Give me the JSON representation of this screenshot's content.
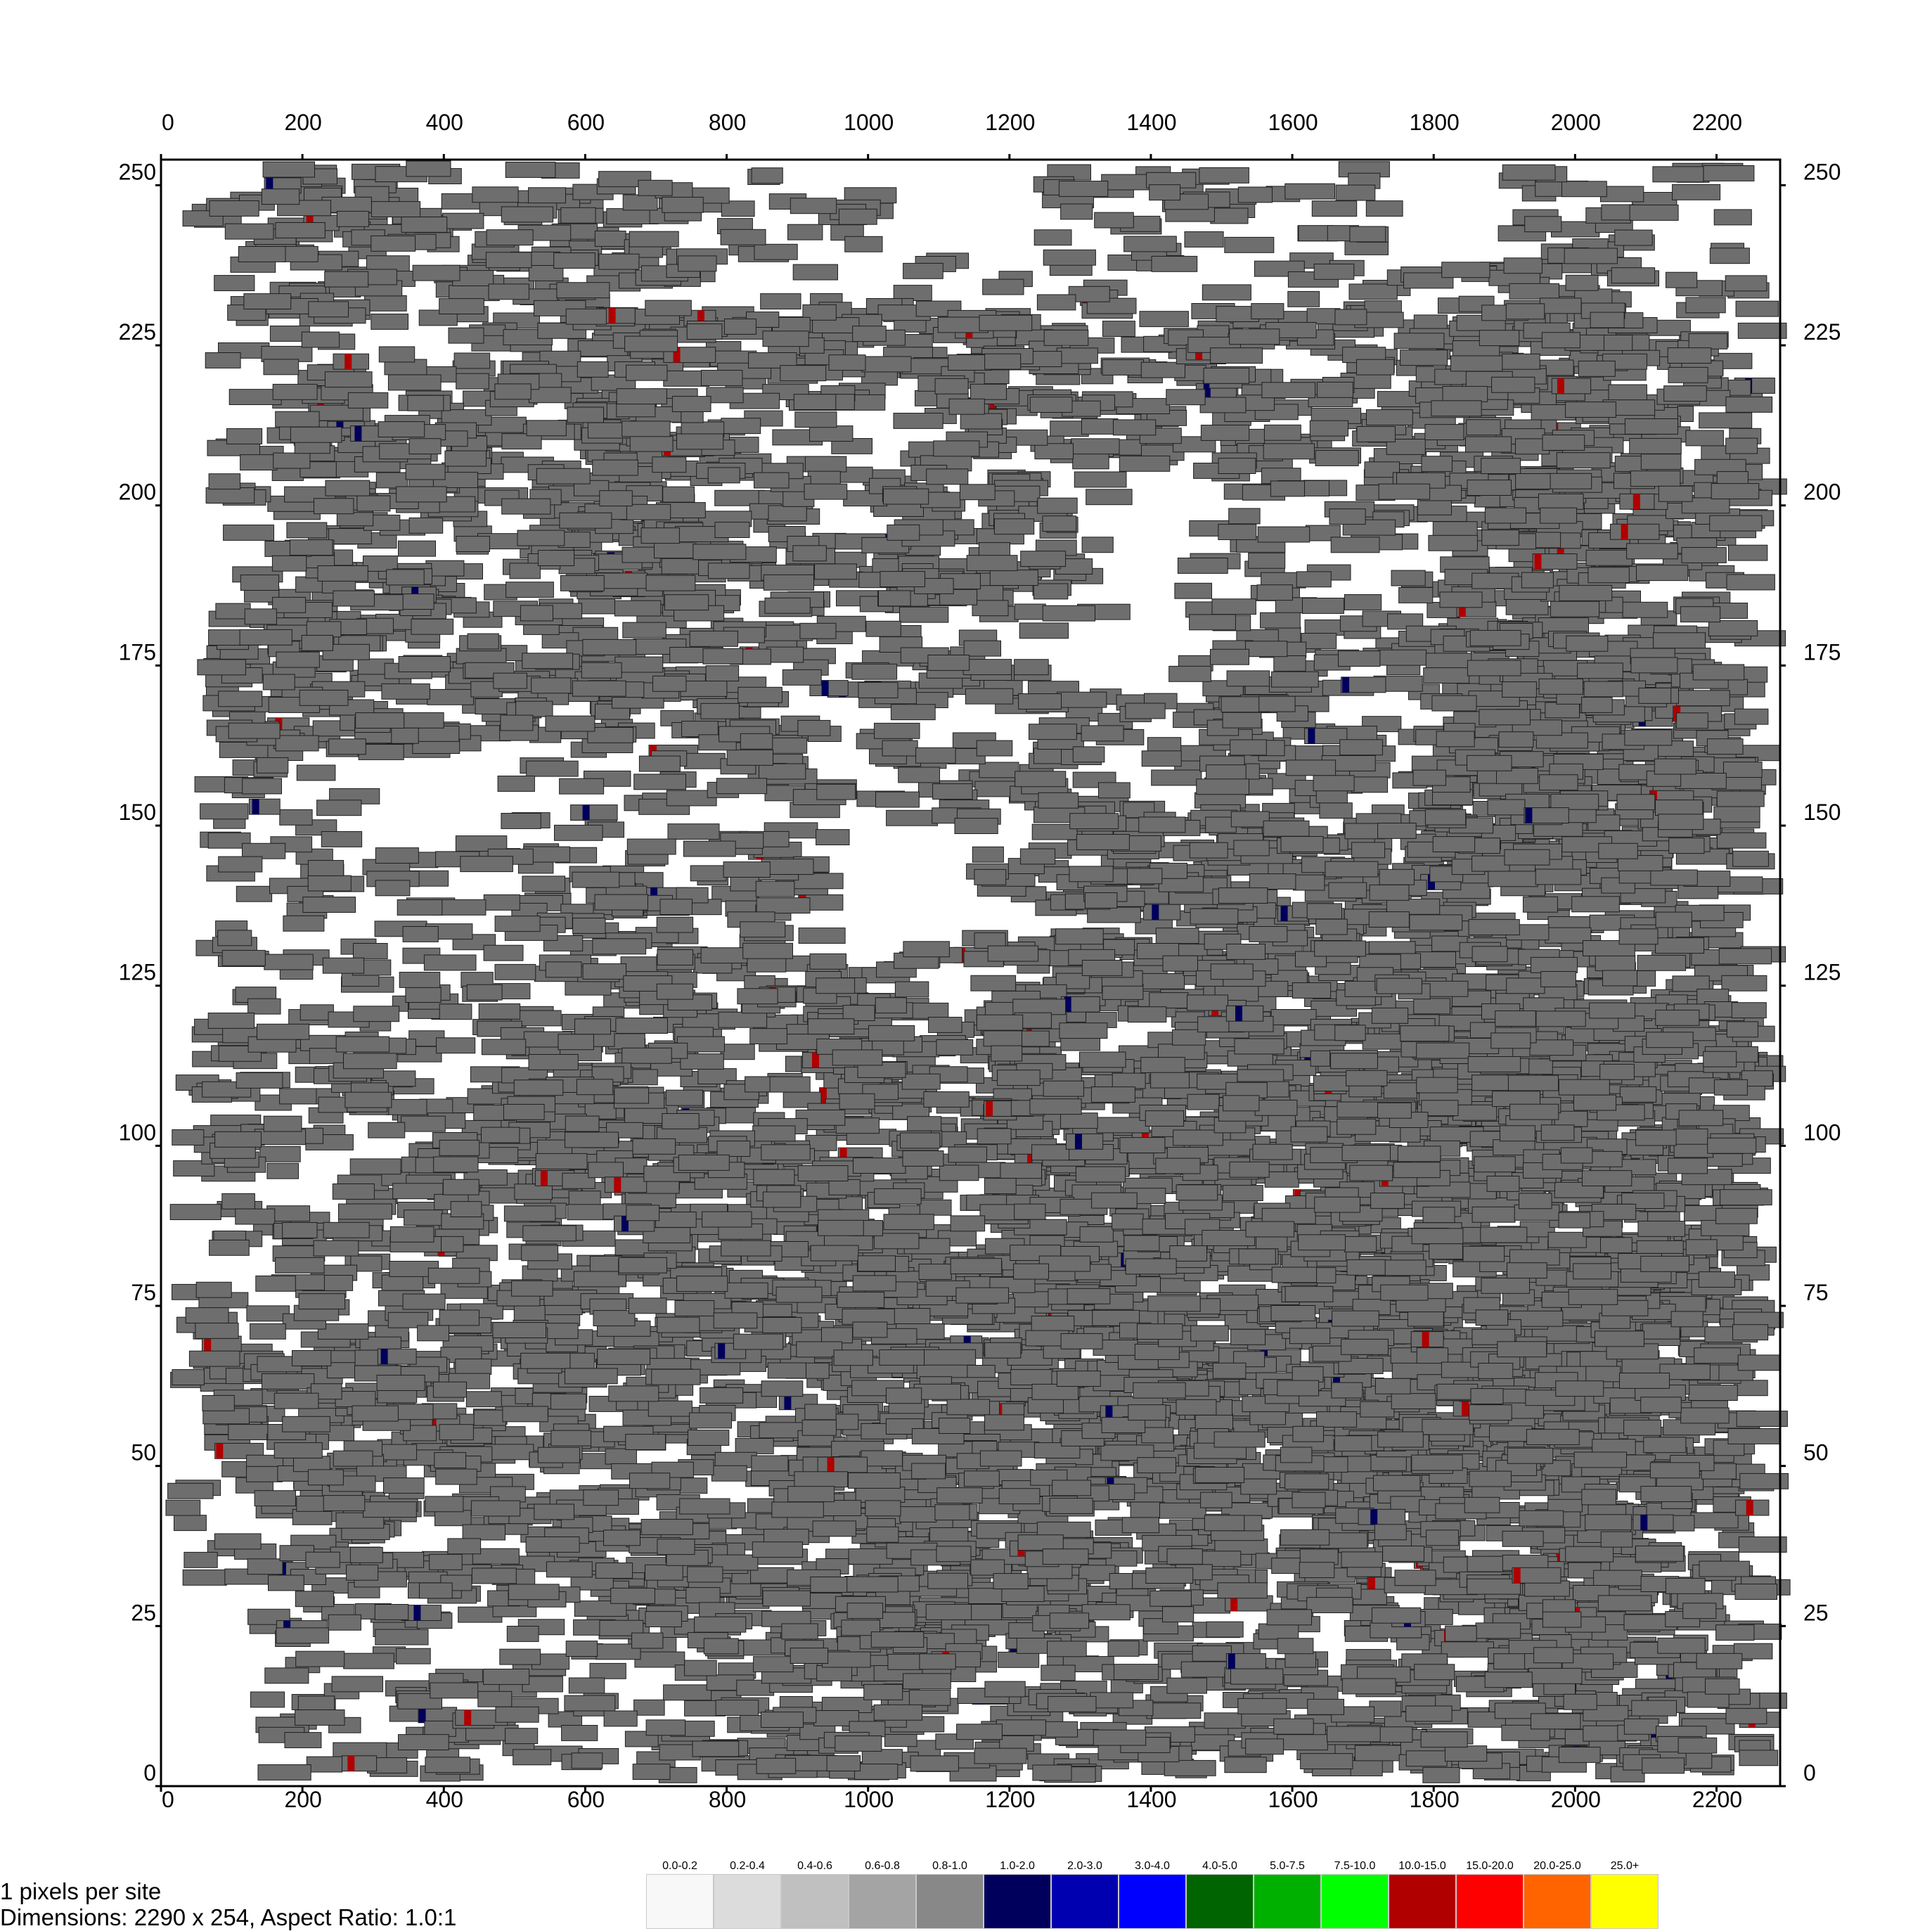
{
  "chart_data": {
    "type": "placement-map",
    "x_ticks": [
      "0",
      "200",
      "400",
      "600",
      "800",
      "1000",
      "1200",
      "1400",
      "1600",
      "1800",
      "2000",
      "2200"
    ],
    "y_ticks": [
      "0",
      "25",
      "50",
      "75",
      "100",
      "125",
      "150",
      "175",
      "200",
      "225",
      "250"
    ],
    "x_range": [
      0,
      2290
    ],
    "y_range": [
      0,
      254
    ],
    "cell_fill": "#6e6e6e",
    "cell_stroke": "#1e1e1e",
    "grid": false
  },
  "footer": {
    "line1": "1 pixels per site",
    "line2": "Dimensions: 2290 x 254, Aspect Ratio: 1.0:1"
  },
  "legend": [
    {
      "label": "0.0-0.2",
      "color": "#f8f8f8"
    },
    {
      "label": "0.2-0.4",
      "color": "#dcdcdc"
    },
    {
      "label": "0.4-0.6",
      "color": "#c0c0c0"
    },
    {
      "label": "0.6-0.8",
      "color": "#a4a4a4"
    },
    {
      "label": "0.8-1.0",
      "color": "#888888"
    },
    {
      "label": "1.0-2.0",
      "color": "#00005c"
    },
    {
      "label": "2.0-3.0",
      "color": "#0000b0"
    },
    {
      "label": "3.0-4.0",
      "color": "#0000ff"
    },
    {
      "label": "4.0-5.0",
      "color": "#006400"
    },
    {
      "label": "5.0-7.5",
      "color": "#00b000"
    },
    {
      "label": "7.5-10.0",
      "color": "#00ff00"
    },
    {
      "label": "10.0-15.0",
      "color": "#b00000"
    },
    {
      "label": "15.0-20.0",
      "color": "#ff0000"
    },
    {
      "label": "20.0-25.0",
      "color": "#ff6400"
    },
    {
      "label": "25.0+",
      "color": "#ffff00"
    }
  ]
}
